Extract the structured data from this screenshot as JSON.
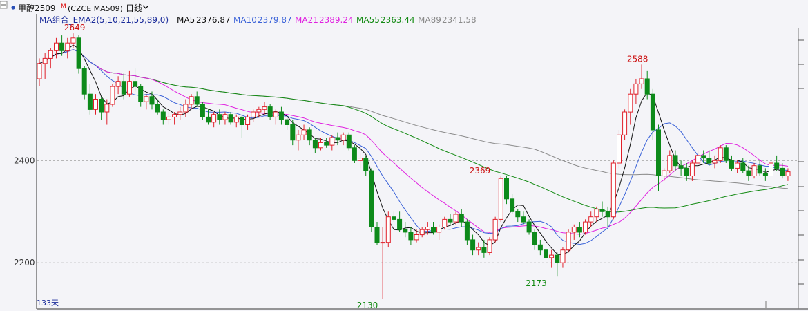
{
  "header": {
    "symbol": "甲醇2509",
    "badge": "M",
    "code": "(CZCE MA509)",
    "period": "日线"
  },
  "legend": {
    "indicator": "MA组合_EMA2(5,10,21,55,89,0)",
    "items": [
      {
        "label": "MA5",
        "value": "2376.87",
        "color": "#111111"
      },
      {
        "label": "MA10",
        "value": "2379.87",
        "color": "#3a62d8"
      },
      {
        "label": "MA21",
        "value": "2389.24",
        "color": "#e020e0"
      },
      {
        "label": "MA55",
        "value": "2363.44",
        "color": "#138a13"
      },
      {
        "label": "MA89",
        "value": "2341.58",
        "color": "#8a8a8a"
      }
    ]
  },
  "footer": {
    "days_label": "133天"
  },
  "colors": {
    "up": "#e0202a",
    "down": "#0d8a1a",
    "background": "#f4f4f8",
    "grid": "#a0a0a0"
  },
  "chart_data": {
    "type": "candlestick",
    "ylim": [
      2130,
      2660
    ],
    "ytick_labels": [
      "2400",
      "2200"
    ],
    "annotations": [
      {
        "text": "2649",
        "index": 6,
        "value": 2649,
        "color": "#cc1010"
      },
      {
        "text": "2588",
        "index": 106,
        "value": 2588,
        "color": "#cc1010"
      },
      {
        "text": "2369",
        "index": 78,
        "value": 2369,
        "color": "#cc1010"
      },
      {
        "text": "2173",
        "index": 88,
        "value": 2173,
        "color": "#138a13"
      },
      {
        "text": "2130",
        "index": 58,
        "value": 2130,
        "color": "#138a13"
      }
    ],
    "candles": [
      [
        2560,
        2600,
        2545,
        2590
      ],
      [
        2590,
        2610,
        2560,
        2600
      ],
      [
        2600,
        2620,
        2580,
        2615
      ],
      [
        2615,
        2640,
        2600,
        2630
      ],
      [
        2630,
        2645,
        2605,
        2615
      ],
      [
        2615,
        2640,
        2600,
        2630
      ],
      [
        2630,
        2649,
        2620,
        2640
      ],
      [
        2640,
        2645,
        2570,
        2580
      ],
      [
        2580,
        2585,
        2520,
        2530
      ],
      [
        2530,
        2550,
        2490,
        2500
      ],
      [
        2500,
        2530,
        2490,
        2520
      ],
      [
        2520,
        2525,
        2480,
        2495
      ],
      [
        2495,
        2520,
        2470,
        2510
      ],
      [
        2510,
        2550,
        2505,
        2545
      ],
      [
        2545,
        2565,
        2530,
        2555
      ],
      [
        2555,
        2570,
        2520,
        2530
      ],
      [
        2530,
        2575,
        2525,
        2555
      ],
      [
        2555,
        2580,
        2535,
        2545
      ],
      [
        2545,
        2550,
        2505,
        2515
      ],
      [
        2515,
        2530,
        2500,
        2525
      ],
      [
        2525,
        2535,
        2500,
        2510
      ],
      [
        2510,
        2520,
        2490,
        2495
      ],
      [
        2495,
        2500,
        2470,
        2480
      ],
      [
        2480,
        2495,
        2470,
        2485
      ],
      [
        2485,
        2495,
        2470,
        2490
      ],
      [
        2490,
        2505,
        2480,
        2495
      ],
      [
        2495,
        2520,
        2485,
        2510
      ],
      [
        2510,
        2530,
        2500,
        2525
      ],
      [
        2525,
        2535,
        2505,
        2510
      ],
      [
        2510,
        2515,
        2480,
        2485
      ],
      [
        2485,
        2500,
        2470,
        2475
      ],
      [
        2475,
        2495,
        2465,
        2490
      ],
      [
        2490,
        2500,
        2470,
        2480
      ],
      [
        2480,
        2495,
        2470,
        2490
      ],
      [
        2490,
        2495,
        2470,
        2475
      ],
      [
        2475,
        2490,
        2465,
        2485
      ],
      [
        2485,
        2490,
        2445,
        2470
      ],
      [
        2470,
        2490,
        2460,
        2485
      ],
      [
        2485,
        2500,
        2475,
        2495
      ],
      [
        2495,
        2505,
        2485,
        2500
      ],
      [
        2500,
        2515,
        2490,
        2505
      ],
      [
        2505,
        2510,
        2480,
        2485
      ],
      [
        2485,
        2500,
        2470,
        2495
      ],
      [
        2495,
        2505,
        2470,
        2480
      ],
      [
        2480,
        2490,
        2460,
        2470
      ],
      [
        2470,
        2480,
        2430,
        2440
      ],
      [
        2440,
        2460,
        2420,
        2450
      ],
      [
        2450,
        2470,
        2440,
        2460
      ],
      [
        2460,
        2465,
        2430,
        2440
      ],
      [
        2440,
        2445,
        2415,
        2425
      ],
      [
        2425,
        2445,
        2420,
        2435
      ],
      [
        2435,
        2445,
        2425,
        2430
      ],
      [
        2430,
        2450,
        2420,
        2445
      ],
      [
        2445,
        2455,
        2430,
        2440
      ],
      [
        2440,
        2455,
        2430,
        2450
      ],
      [
        2450,
        2455,
        2420,
        2425
      ],
      [
        2425,
        2430,
        2395,
        2400
      ],
      [
        2400,
        2415,
        2385,
        2405
      ],
      [
        2405,
        2410,
        2370,
        2380
      ],
      [
        2380,
        2385,
        2260,
        2270
      ],
      [
        2270,
        2280,
        2235,
        2240
      ],
      [
        2240,
        2270,
        2130,
        2240
      ],
      [
        2240,
        2300,
        2230,
        2290
      ],
      [
        2290,
        2300,
        2280,
        2285
      ],
      [
        2285,
        2300,
        2260,
        2265
      ],
      [
        2265,
        2280,
        2250,
        2260
      ],
      [
        2260,
        2270,
        2235,
        2245
      ],
      [
        2245,
        2265,
        2240,
        2255
      ],
      [
        2255,
        2270,
        2250,
        2265
      ],
      [
        2265,
        2280,
        2255,
        2270
      ],
      [
        2270,
        2280,
        2255,
        2260
      ],
      [
        2260,
        2275,
        2245,
        2270
      ],
      [
        2270,
        2290,
        2265,
        2285
      ],
      [
        2285,
        2295,
        2275,
        2280
      ],
      [
        2280,
        2300,
        2275,
        2295
      ],
      [
        2295,
        2305,
        2270,
        2280
      ],
      [
        2280,
        2285,
        2235,
        2245
      ],
      [
        2245,
        2255,
        2215,
        2225
      ],
      [
        2225,
        2240,
        2215,
        2230
      ],
      [
        2230,
        2245,
        2210,
        2220
      ],
      [
        2220,
        2250,
        2215,
        2245
      ],
      [
        2245,
        2290,
        2240,
        2285
      ],
      [
        2285,
        2369,
        2280,
        2365
      ],
      [
        2365,
        2370,
        2315,
        2325
      ],
      [
        2325,
        2335,
        2295,
        2300
      ],
      [
        2300,
        2305,
        2280,
        2290
      ],
      [
        2290,
        2300,
        2275,
        2280
      ],
      [
        2280,
        2285,
        2255,
        2260
      ],
      [
        2260,
        2265,
        2225,
        2235
      ],
      [
        2235,
        2245,
        2215,
        2225
      ],
      [
        2225,
        2235,
        2195,
        2210
      ],
      [
        2210,
        2225,
        2190,
        2215
      ],
      [
        2215,
        2220,
        2173,
        2200
      ],
      [
        2200,
        2230,
        2190,
        2225
      ],
      [
        2225,
        2265,
        2220,
        2260
      ],
      [
        2260,
        2275,
        2245,
        2270
      ],
      [
        2270,
        2280,
        2250,
        2260
      ],
      [
        2260,
        2285,
        2255,
        2280
      ],
      [
        2280,
        2300,
        2270,
        2290
      ],
      [
        2290,
        2310,
        2280,
        2305
      ],
      [
        2305,
        2320,
        2290,
        2300
      ],
      [
        2300,
        2310,
        2270,
        2290
      ],
      [
        2290,
        2400,
        2285,
        2395
      ],
      [
        2395,
        2460,
        2385,
        2450
      ],
      [
        2450,
        2500,
        2440,
        2495
      ],
      [
        2495,
        2540,
        2470,
        2530
      ],
      [
        2530,
        2560,
        2510,
        2550
      ],
      [
        2550,
        2588,
        2540,
        2560
      ],
      [
        2560,
        2575,
        2520,
        2530
      ],
      [
        2530,
        2540,
        2440,
        2460
      ],
      [
        2460,
        2470,
        2340,
        2370
      ],
      [
        2370,
        2385,
        2360,
        2380
      ],
      [
        2380,
        2420,
        2375,
        2410
      ],
      [
        2410,
        2420,
        2380,
        2390
      ],
      [
        2390,
        2400,
        2370,
        2385
      ],
      [
        2385,
        2395,
        2360,
        2370
      ],
      [
        2370,
        2400,
        2360,
        2395
      ],
      [
        2395,
        2420,
        2385,
        2410
      ],
      [
        2410,
        2420,
        2395,
        2405
      ],
      [
        2405,
        2420,
        2390,
        2395
      ],
      [
        2395,
        2410,
        2385,
        2400
      ],
      [
        2400,
        2430,
        2395,
        2425
      ],
      [
        2425,
        2430,
        2395,
        2400
      ],
      [
        2400,
        2410,
        2380,
        2385
      ],
      [
        2385,
        2400,
        2375,
        2395
      ],
      [
        2395,
        2405,
        2375,
        2380
      ],
      [
        2380,
        2390,
        2360,
        2370
      ],
      [
        2370,
        2395,
        2365,
        2390
      ],
      [
        2390,
        2400,
        2370,
        2375
      ],
      [
        2375,
        2385,
        2360,
        2370
      ],
      [
        2370,
        2400,
        2365,
        2395
      ],
      [
        2395,
        2410,
        2380,
        2385
      ],
      [
        2385,
        2395,
        2365,
        2370
      ],
      [
        2370,
        2385,
        2360,
        2378
      ]
    ]
  }
}
